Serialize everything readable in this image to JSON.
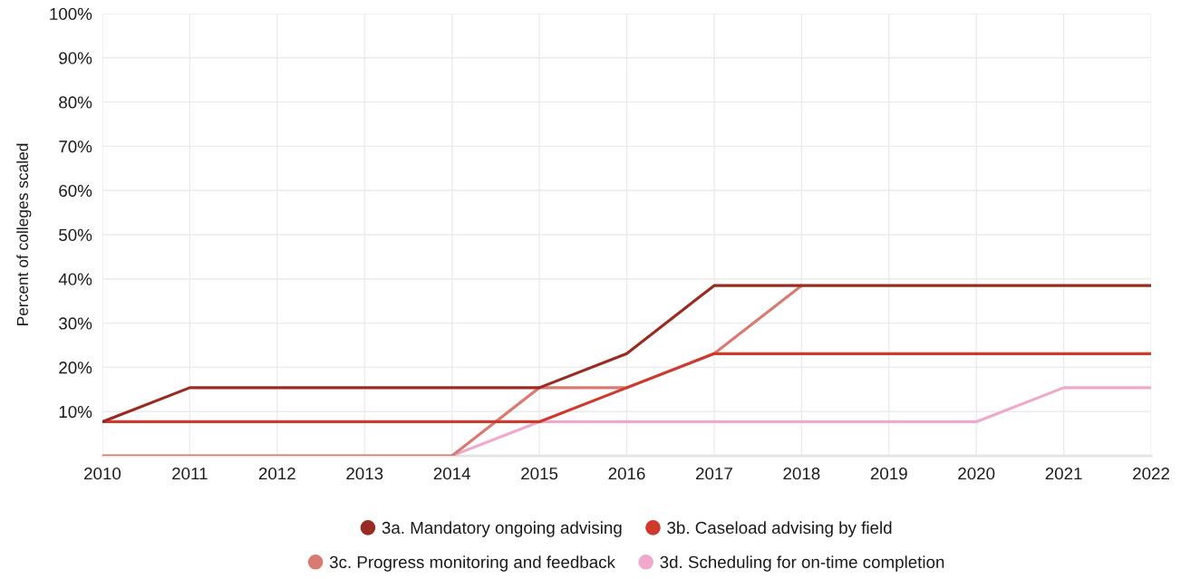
{
  "chart_data": {
    "type": "line",
    "ylabel": "Percent of colleges scaled",
    "x": [
      2010,
      2011,
      2012,
      2013,
      2014,
      2015,
      2016,
      2017,
      2018,
      2019,
      2020,
      2021,
      2022
    ],
    "xlim": [
      2010,
      2022
    ],
    "xticks": [
      2010,
      2011,
      2012,
      2013,
      2014,
      2015,
      2016,
      2017,
      2018,
      2019,
      2020,
      2021,
      2022
    ],
    "ylim": [
      0,
      100
    ],
    "yticks": [
      {
        "value": 0,
        "label": null
      },
      {
        "value": 10,
        "label": "10%"
      },
      {
        "value": 20,
        "label": "20%"
      },
      {
        "value": 30,
        "label": "30%"
      },
      {
        "value": 40,
        "label": "40%"
      },
      {
        "value": 50,
        "label": "50%"
      },
      {
        "value": 60,
        "label": "60%"
      },
      {
        "value": 70,
        "label": "70%"
      },
      {
        "value": 80,
        "label": "80%"
      },
      {
        "value": 90,
        "label": "90%"
      },
      {
        "value": 100,
        "label": "100%"
      }
    ],
    "grid": true,
    "legend": "bottom",
    "series": [
      {
        "name": "3a. Mandatory ongoing advising",
        "color": "#992b22",
        "values": [
          7.7,
          15.4,
          15.4,
          15.4,
          15.4,
          15.4,
          23.1,
          38.5,
          38.5,
          38.5,
          38.5,
          38.5,
          38.5
        ]
      },
      {
        "name": "3b. Caseload advising by field",
        "color": "#cf3a2d",
        "values": [
          7.7,
          7.7,
          7.7,
          7.7,
          7.7,
          7.7,
          15.4,
          23.1,
          23.1,
          23.1,
          23.1,
          23.1,
          23.1
        ]
      },
      {
        "name": "3c. Progress monitoring and feedback",
        "color": "#d97b72",
        "values": [
          0,
          0,
          0,
          0,
          0,
          15.4,
          15.4,
          23.1,
          38.5,
          null,
          null,
          null,
          null
        ]
      },
      {
        "name": "3d. Scheduling for on-time completion",
        "color": "#f0a9cd",
        "values": [
          null,
          null,
          null,
          null,
          0,
          7.7,
          7.7,
          7.7,
          7.7,
          7.7,
          7.7,
          15.4,
          15.4
        ]
      }
    ]
  }
}
